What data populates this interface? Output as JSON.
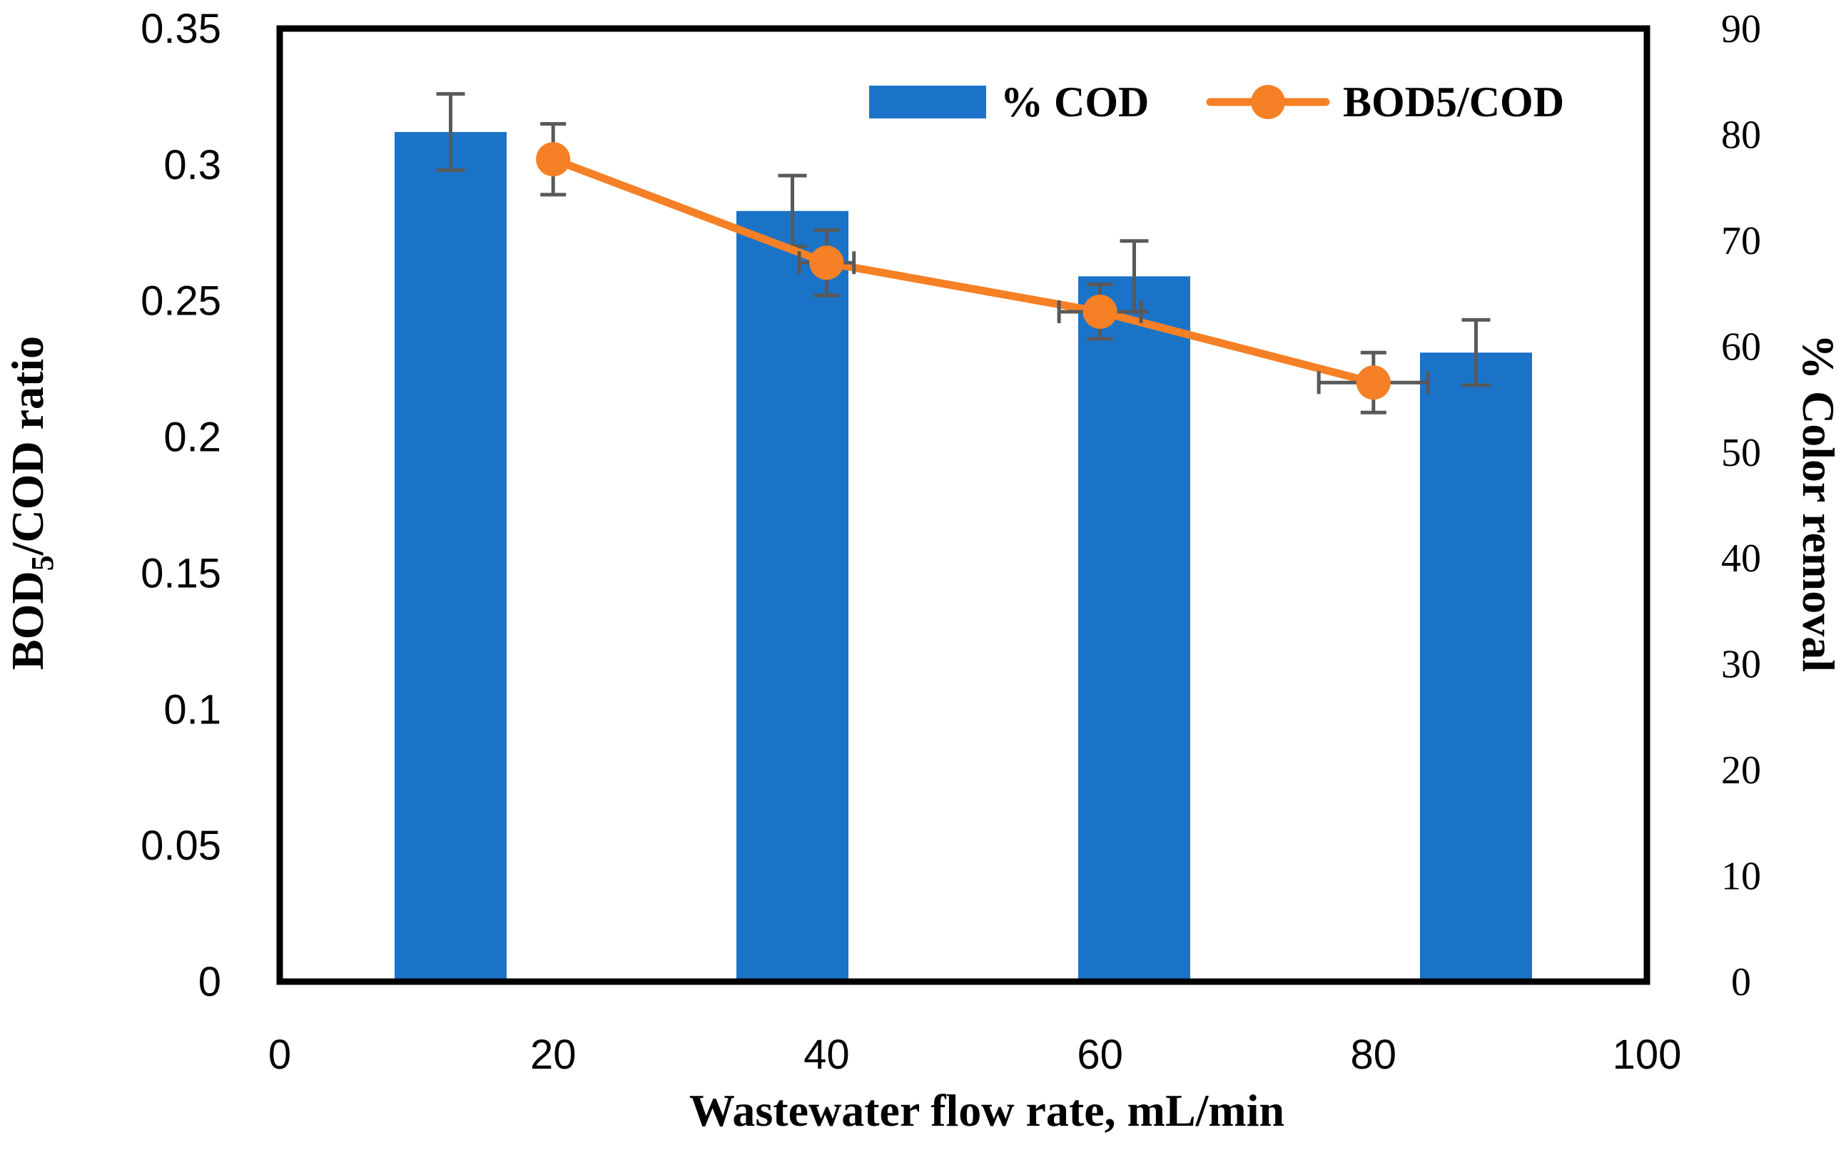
{
  "chart_data": {
    "type": "bar+line",
    "x_axis": {
      "label": "Wastewater flow rate, mL/min",
      "range": [
        0,
        100
      ],
      "ticks": [
        "0",
        "20",
        "40",
        "60",
        "80",
        "100"
      ]
    },
    "y_left": {
      "label_main": "BOD",
      "label_sub": "5",
      "label_rest": "/COD ratio",
      "range": [
        0,
        0.35
      ],
      "ticks": [
        "0",
        "0.05",
        "0.1",
        "0.15",
        "0.2",
        "0.25",
        "0.3",
        "0.35"
      ]
    },
    "y_right": {
      "label": "% Color removal",
      "range": [
        0,
        90
      ],
      "ticks": [
        "0",
        "10",
        "20",
        "30",
        "40",
        "50",
        "60",
        "70",
        "80",
        "90"
      ]
    },
    "bar_series": {
      "name": "% COD",
      "color": "#1a73c7",
      "axis": "left",
      "x": [
        12.5,
        37.5,
        62.5,
        87.5
      ],
      "values": [
        0.312,
        0.283,
        0.259,
        0.231
      ],
      "error": [
        0.014,
        0.013,
        0.013,
        0.012
      ]
    },
    "line_series": {
      "name": "BOD5/COD",
      "color": "#f58025",
      "axis": "left",
      "x": [
        20,
        40,
        60,
        80
      ],
      "values": [
        0.302,
        0.264,
        0.246,
        0.22
      ],
      "y_error": [
        0.013,
        0.012,
        0.01,
        0.011
      ],
      "x_error": [
        0,
        2,
        3,
        4
      ]
    },
    "legend_position": "top-right",
    "grid": false
  }
}
